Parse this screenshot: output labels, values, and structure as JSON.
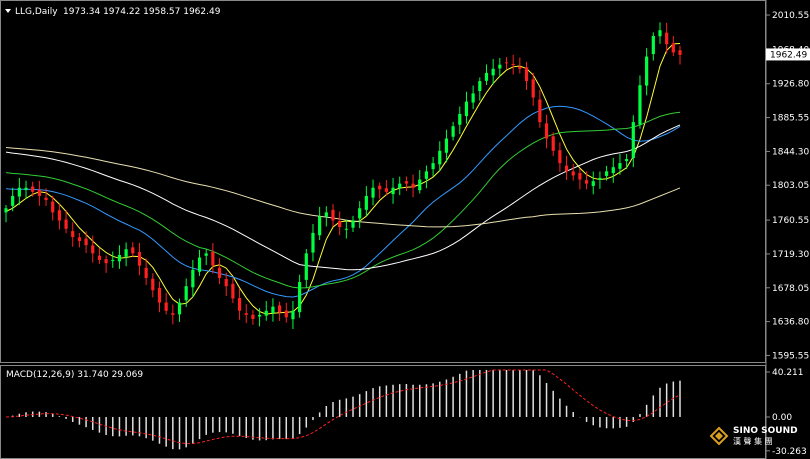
{
  "header": {
    "symbol": "LLG,Daily",
    "ohlc": "1973.34 1974.22 1958.57 1962.49"
  },
  "price_axis": {
    "ticks": [
      {
        "label": "2010.55",
        "value": 2010.55
      },
      {
        "label": "1968.40",
        "value": 1968.4
      },
      {
        "label": "1926.80",
        "value": 1926.8
      },
      {
        "label": "1885.55",
        "value": 1885.55
      },
      {
        "label": "1844.30",
        "value": 1844.3
      },
      {
        "label": "1803.05",
        "value": 1803.05
      },
      {
        "label": "1760.55",
        "value": 1760.55
      },
      {
        "label": "1719.30",
        "value": 1719.3
      },
      {
        "label": "1678.05",
        "value": 1678.05
      },
      {
        "label": "1636.80",
        "value": 1636.8
      },
      {
        "label": "1595.55",
        "value": 1595.55
      }
    ],
    "current_price_label": "1962.49",
    "current_price": 1962.49,
    "ymin": 1590,
    "ymax": 2024
  },
  "macd": {
    "label": "MACD(12,26,9) 31.740 29.069",
    "ticks": [
      {
        "label": "40.211",
        "value": 40.211
      },
      {
        "label": "0.00",
        "value": 0
      },
      {
        "label": "-30.263",
        "value": -30.263
      }
    ],
    "ymin": -34,
    "ymax": 42
  },
  "watermark": {
    "brand": "SINO SOUND",
    "sub": "漢 聲 集 團"
  },
  "colors": {
    "bull": "#00ff40",
    "bear": "#ff2020",
    "ma_fast": "#ffff33",
    "ma_blue": "#3399ff",
    "ma_green": "#33cc33",
    "ma_white": "#ffffff",
    "ma_slow": "#e8e0b0",
    "macd_hist": "#e0e0e0",
    "macd_signal": "#ff2020"
  },
  "chart_data": {
    "type": "line",
    "title": "LLG,Daily",
    "series": [
      {
        "values": [
          1775,
          1790,
          1800,
          1800,
          1795,
          1790,
          1785,
          1770,
          1760,
          1750,
          1740,
          1735,
          1730,
          1720,
          1712,
          1708,
          1712,
          1718,
          1725,
          1720,
          1705,
          1690,
          1675,
          1660,
          1650,
          1645,
          1660,
          1680,
          1700,
          1715,
          1720,
          1705,
          1690,
          1680,
          1665,
          1650,
          1645,
          1640,
          1645,
          1650,
          1655,
          1648,
          1642,
          1650,
          1685,
          1720,
          1745,
          1765,
          1770,
          1760,
          1752,
          1750,
          1760,
          1775,
          1790,
          1800,
          1798,
          1795,
          1800,
          1805,
          1805,
          1800,
          1810,
          1820,
          1830,
          1845,
          1860,
          1875,
          1890,
          1905,
          1915,
          1930,
          1940,
          1945,
          1950,
          1952,
          1950,
          1945,
          1930,
          1910,
          1880,
          1860,
          1845,
          1830,
          1820,
          1815,
          1810,
          1805,
          1808,
          1812,
          1820,
          1825,
          1830,
          1835,
          1880,
          1925,
          1960,
          1985,
          1992,
          1975,
          1965,
          1962
        ]
      }
    ]
  }
}
